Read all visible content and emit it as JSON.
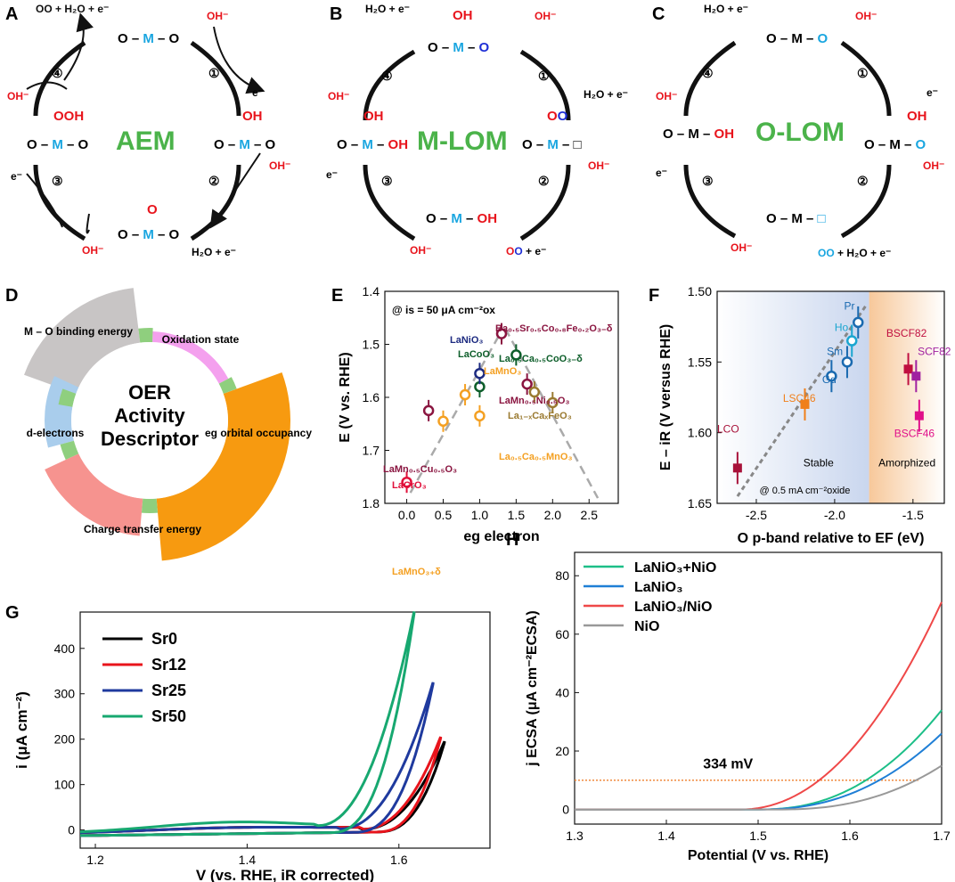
{
  "colors": {
    "red": "#e8141c",
    "cyan": "#1aa6e0",
    "blue": "#1f2fd6",
    "green": "#4bb34a",
    "black": "#111111"
  },
  "panelA": {
    "letter": "A",
    "title": "AEM",
    "top": "O – M – O",
    "right": "O – M – O",
    "bottom": "O – M – O",
    "left": "O – M – O",
    "right_sub": "OH",
    "bottom_sub": "O",
    "left_sub": "OOH",
    "oh": "OH⁻",
    "e": "e⁻",
    "out_top": "OO + H₂O + e⁻",
    "out_bottom": "H₂O + e⁻",
    "steps": [
      "①",
      "②",
      "③",
      "④"
    ]
  },
  "panelB": {
    "letter": "B",
    "title": "M-LOM",
    "top_sub": "OH",
    "right_sub": "OO",
    "out_top": "H₂O + e⁻",
    "out_right": "H₂O + e⁻",
    "out_bottom": "OO + e⁻"
  },
  "panelC": {
    "letter": "C",
    "title": "O-LOM",
    "right_sub": "OH",
    "out_top": "H₂O + e⁻",
    "out_bottom": "OO + H₂O + e⁻"
  },
  "panelD": {
    "letter": "D",
    "center": [
      "OER",
      "Activity",
      "Descriptor"
    ],
    "segments": [
      {
        "label": "M – O binding energy",
        "color": "#c8c5c5"
      },
      {
        "label": "Oxidation state",
        "color": "#f4a0ee"
      },
      {
        "label": "eg orbital occupancy",
        "color": "#f79a10"
      },
      {
        "label": "Charge transfer energy",
        "color": "#f6938f"
      },
      {
        "label": "d-electrons",
        "color": "#a9cdec"
      }
    ],
    "spacer_color": "#8fcf7e"
  },
  "chart_data": [
    {
      "panel": "E",
      "type": "scatter",
      "annotation": "@ is = 50 μA cm⁻²ox",
      "xlabel": "eg electron",
      "ylabel": "E (V vs. RHE)",
      "xlim": [
        -0.3,
        2.9
      ],
      "ylim": [
        1.8,
        1.4
      ],
      "xticks": [
        0,
        0.5,
        1,
        1.5,
        2,
        2.5
      ],
      "yticks": [
        1.4,
        1.5,
        1.6,
        1.7,
        1.8
      ],
      "points": [
        {
          "label": "LaCrO₃",
          "x": 0,
          "y": 1.76,
          "color": "#e0103a"
        },
        {
          "label": "LaMnO₃₊δ",
          "x": 0.5,
          "y": 1.645,
          "color": "#f4a022"
        },
        {
          "label": "LaMn₀.₅Cu₀.₅O₃",
          "x": 0.3,
          "y": 1.625,
          "color": "#8a1540"
        },
        {
          "label": "La₀.₅Ca₀.₅MnO₃",
          "x": 0.8,
          "y": 1.595,
          "color": "#f4a022"
        },
        {
          "label": "LaMnO₃",
          "x": 1.0,
          "y": 1.635,
          "color": "#f4a022"
        },
        {
          "label": "LaCoO₃",
          "x": 1.0,
          "y": 1.58,
          "color": "#0d5e2a"
        },
        {
          "label": "LaNiO₃",
          "x": 1.0,
          "y": 1.555,
          "color": "#1c2a80"
        },
        {
          "label": "Ba₀.₅Sr₀.₅Co₀.₈Fe₀.₂O₃₋δ",
          "x": 1.3,
          "y": 1.48,
          "color": "#8a1540"
        },
        {
          "label": "La₀.₅Ca₀.₅CoO₃₋δ",
          "x": 1.5,
          "y": 1.52,
          "color": "#0d5e2a"
        },
        {
          "label": "LaMn₀.₅Ni₀.₅O₃",
          "x": 1.65,
          "y": 1.575,
          "color": "#8a1540"
        },
        {
          "label": "La₁₋ₓCaₓFeO₃",
          "x": 1.75,
          "y": 1.59,
          "color": "#9a7a30"
        },
        {
          "label": "",
          "x": 2.0,
          "y": 1.61,
          "color": "#9a7a30"
        }
      ]
    },
    {
      "panel": "F",
      "type": "scatter",
      "xlabel": "O p-band relative to EF (eV)",
      "ylabel": "E – iR (V versus RHE)",
      "xlim": [
        -2.75,
        -1.3
      ],
      "ylim": [
        1.65,
        1.5
      ],
      "xticks": [
        -2.5,
        -2.0,
        -1.5
      ],
      "yticks": [
        1.5,
        1.55,
        1.6,
        1.65
      ],
      "regions": [
        "Stable",
        "Amorphized"
      ],
      "annotation": "@ 0.5 mA cm⁻²oxide",
      "points": [
        {
          "label": "LCO",
          "x": -2.62,
          "y": 1.625,
          "color": "#a8123a"
        },
        {
          "label": "LSC46",
          "x": -2.19,
          "y": 1.58,
          "color": "#f07f1a"
        },
        {
          "label": "Gd",
          "x": -2.02,
          "y": 1.56,
          "color": "#1a6ab0"
        },
        {
          "label": "Sm",
          "x": -1.92,
          "y": 1.55,
          "color": "#1a6ab0"
        },
        {
          "label": "Ho",
          "x": -1.89,
          "y": 1.535,
          "color": "#1aa6d0"
        },
        {
          "label": "Pr",
          "x": -1.85,
          "y": 1.522,
          "color": "#1a6ab0"
        },
        {
          "label": "BSCF82",
          "x": -1.53,
          "y": 1.555,
          "color": "#c01040"
        },
        {
          "label": "SCF82",
          "x": -1.48,
          "y": 1.56,
          "color": "#a020a0"
        },
        {
          "label": "BSCF46",
          "x": -1.46,
          "y": 1.588,
          "color": "#e0108a"
        }
      ]
    },
    {
      "panel": "G",
      "type": "line",
      "xlabel": "V (vs. RHE, iR corrected)",
      "ylabel": "i (μA cm⁻²)",
      "xlim": [
        1.18,
        1.72
      ],
      "ylim": [
        -40,
        480
      ],
      "xticks": [
        1.2,
        1.4,
        1.6
      ],
      "yticks": [
        0,
        100,
        200,
        300,
        400
      ],
      "series": [
        {
          "name": "Sr0",
          "color": "#000000",
          "onset": 1.55,
          "end": 1.66,
          "max": 195
        },
        {
          "name": "Sr12",
          "color": "#e8141c",
          "onset": 1.55,
          "end": 1.655,
          "max": 205
        },
        {
          "name": "Sr25",
          "color": "#1f3a9e",
          "onset": 1.52,
          "end": 1.645,
          "max": 325
        },
        {
          "name": "Sr50",
          "color": "#17a870",
          "onset": 1.49,
          "end": 1.62,
          "max": 480
        }
      ]
    },
    {
      "panel": "H",
      "type": "line",
      "xlabel": "Potential (V vs. RHE)",
      "ylabel": "j ECSA (μA cm⁻²ECSA)",
      "xlim": [
        1.3,
        1.7
      ],
      "ylim": [
        -5,
        88
      ],
      "xticks": [
        1.3,
        1.4,
        1.5,
        1.6,
        1.7
      ],
      "yticks": [
        0,
        20,
        40,
        60,
        80
      ],
      "annotation": "334 mV",
      "series": [
        {
          "name": "LaNiO₃+NiO",
          "color": "#1dbf88",
          "end": 34
        },
        {
          "name": "LaNiO₃",
          "color": "#1f7fd6",
          "end": 26
        },
        {
          "name": "LaNiO₃/NiO",
          "color": "#ef4848",
          "end": 71
        },
        {
          "name": "NiO",
          "color": "#999999",
          "end": 15
        }
      ]
    }
  ],
  "letters": {
    "D": "D",
    "E": "E",
    "F": "F",
    "G": "G",
    "H": "H"
  }
}
